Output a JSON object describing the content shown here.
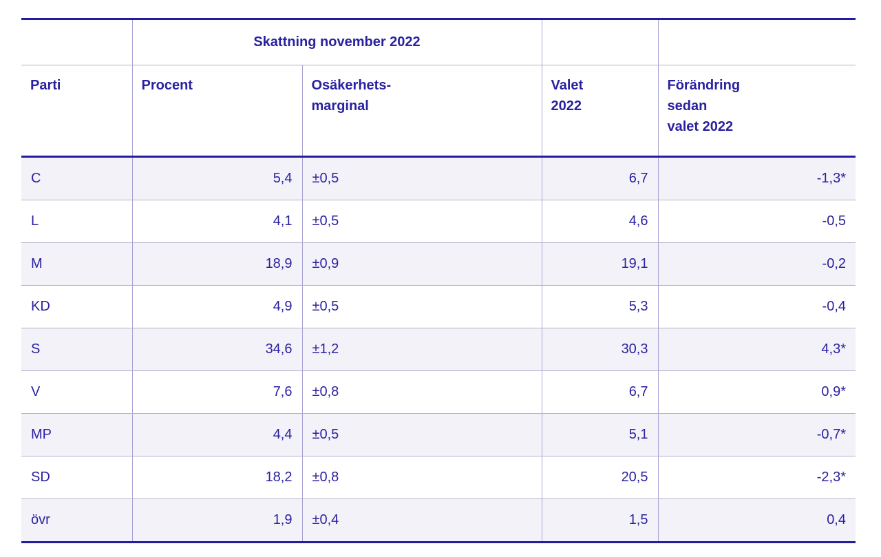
{
  "table": {
    "title": "Skattning november 2022",
    "headers": {
      "parti": "Parti",
      "procent": "Procent",
      "marginal_line1": "Osäkerhets-",
      "marginal_line2": "marginal",
      "valet_line1": "Valet",
      "valet_line2": "2022",
      "forandring_line1": "Förändring",
      "forandring_line2": "sedan",
      "forandring_line3": "valet 2022"
    },
    "rows": [
      {
        "parti": "C",
        "procent": "5,4",
        "marginal": "±0,5",
        "valet": "6,7",
        "forandring": "-1,3*"
      },
      {
        "parti": "L",
        "procent": "4,1",
        "marginal": "±0,5",
        "valet": "4,6",
        "forandring": "-0,5"
      },
      {
        "parti": "M",
        "procent": "18,9",
        "marginal": "±0,9",
        "valet": "19,1",
        "forandring": "-0,2"
      },
      {
        "parti": "KD",
        "procent": "4,9",
        "marginal": "±0,5",
        "valet": "5,3",
        "forandring": "-0,4"
      },
      {
        "parti": "S",
        "procent": "34,6",
        "marginal": "±1,2",
        "valet": "30,3",
        "forandring": "4,3*"
      },
      {
        "parti": "V",
        "procent": "7,6",
        "marginal": "±0,8",
        "valet": "6,7",
        "forandring": "0,9*"
      },
      {
        "parti": "MP",
        "procent": "4,4",
        "marginal": "±0,5",
        "valet": "5,1",
        "forandring": "-0,7*"
      },
      {
        "parti": "SD",
        "procent": "18,2",
        "marginal": "±0,8",
        "valet": "20,5",
        "forandring": "-2,3*"
      },
      {
        "parti": "övr",
        "procent": "1,9",
        "marginal": "±0,4",
        "valet": "1,5",
        "forandring": "0,4"
      }
    ]
  },
  "colors": {
    "text": "#2a21a0",
    "border_heavy": "#221c9e",
    "divider_vertical": "#a7a3d3",
    "divider_horizontal": "#b3b0c9",
    "row_alt_background": "#f3f2f9",
    "row_background": "#ffffff"
  },
  "chart_data": {
    "type": "table",
    "title": "Skattning november 2022",
    "columns": [
      "Parti",
      "Procent",
      "Osäkerhets-marginal",
      "Valet 2022",
      "Förändring sedan valet 2022"
    ],
    "rows": [
      [
        "C",
        "5,4",
        "±0,5",
        "6,7",
        "-1,3*"
      ],
      [
        "L",
        "4,1",
        "±0,5",
        "4,6",
        "-0,5"
      ],
      [
        "M",
        "18,9",
        "±0,9",
        "19,1",
        "-0,2"
      ],
      [
        "KD",
        "4,9",
        "±0,5",
        "5,3",
        "-0,4"
      ],
      [
        "S",
        "34,6",
        "±1,2",
        "30,3",
        "4,3*"
      ],
      [
        "V",
        "7,6",
        "±0,8",
        "6,7",
        "0,9*"
      ],
      [
        "MP",
        "4,4",
        "±0,5",
        "5,1",
        "-0,7*"
      ],
      [
        "SD",
        "18,2",
        "±0,8",
        "20,5",
        "-2,3*"
      ],
      [
        "övr",
        "1,9",
        "±0,4",
        "1,5",
        "0,4"
      ]
    ],
    "layout_hints": {
      "alternating_row_shading": true,
      "significance_marker": "*",
      "title_spans_columns": [
        "Procent",
        "Osäkerhets-marginal"
      ]
    }
  }
}
